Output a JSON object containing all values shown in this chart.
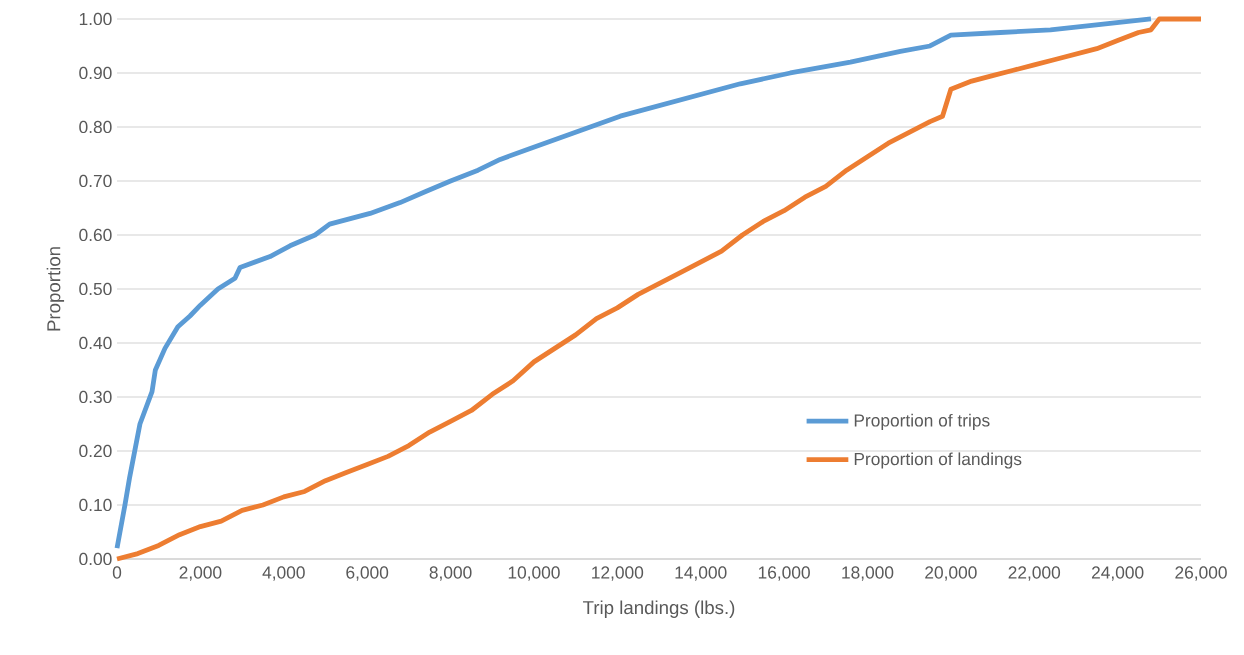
{
  "chart_data": {
    "type": "line",
    "xlabel": "Trip landings (lbs.)",
    "ylabel": "Proportion",
    "xlim": [
      0,
      26000
    ],
    "ylim": [
      0,
      1
    ],
    "xticks": [
      0,
      {
        "value": 2000,
        "label": "2,000"
      },
      {
        "value": 4000,
        "label": "4,000"
      },
      {
        "value": 6000,
        "label": "6,000"
      },
      {
        "value": 8000,
        "label": "8,000"
      },
      {
        "value": 10000,
        "label": "10,000"
      },
      {
        "value": 12000,
        "label": "12,000"
      },
      {
        "value": 14000,
        "label": "14,000"
      },
      {
        "value": 16000,
        "label": "16,000"
      },
      {
        "value": 18000,
        "label": "18,000"
      },
      {
        "value": 20000,
        "label": "20,000"
      },
      {
        "value": 22000,
        "label": "22,000"
      },
      {
        "value": 24000,
        "label": "24,000"
      },
      {
        "value": 26000,
        "label": "26,000"
      }
    ],
    "yticks": [
      {
        "value": 0,
        "label": "0.00"
      },
      {
        "value": 0.1,
        "label": "0.10"
      },
      {
        "value": 0.2,
        "label": "0.20"
      },
      {
        "value": 0.3,
        "label": "0.30"
      },
      {
        "value": 0.4,
        "label": "0.40"
      },
      {
        "value": 0.5,
        "label": "0.50"
      },
      {
        "value": 0.6,
        "label": "0.60"
      },
      {
        "value": 0.7,
        "label": "0.70"
      },
      {
        "value": 0.8,
        "label": "0.80"
      },
      {
        "value": 0.9,
        "label": "0.90"
      },
      {
        "value": 1,
        "label": "1.00"
      }
    ],
    "grid": "y",
    "legend": "bottom right",
    "marker": "none",
    "line_style": "solid",
    "series": [
      {
        "name": "Proportion of trips",
        "color": "#5b9bd5",
        "x": [
          0,
          190,
          300,
          550,
          840,
          920,
          1150,
          1460,
          1750,
          2000,
          2420,
          2830,
          2950,
          3670,
          4150,
          4750,
          5100,
          6070,
          6790,
          7390,
          8000,
          8660,
          9190,
          9910,
          10630,
          11350,
          12070,
          13030,
          13990,
          14950,
          16150,
          17590,
          18790,
          19500,
          20000,
          21190,
          22390,
          23600,
          24800
        ],
        "values": [
          0.02,
          0.1,
          0.15,
          0.25,
          0.31,
          0.35,
          0.39,
          0.43,
          0.45,
          0.47,
          0.5,
          0.52,
          0.54,
          0.56,
          0.58,
          0.6,
          0.62,
          0.64,
          0.66,
          0.68,
          0.7,
          0.72,
          0.74,
          0.76,
          0.78,
          0.8,
          0.82,
          0.84,
          0.86,
          0.88,
          0.9,
          0.92,
          0.94,
          0.95,
          0.97,
          0.975,
          0.98,
          0.99,
          1.0
        ]
      },
      {
        "name": "Proportion of landings",
        "color": "#ed7d31",
        "x": [
          0,
          500,
          1000,
          1500,
          2000,
          2500,
          3000,
          3500,
          4000,
          4500,
          5000,
          5500,
          6000,
          6500,
          7000,
          7500,
          8000,
          8500,
          9000,
          9500,
          10000,
          10500,
          11000,
          11500,
          12000,
          12500,
          13000,
          13500,
          14000,
          14500,
          15000,
          15500,
          16000,
          16500,
          17000,
          17500,
          18000,
          18500,
          19000,
          19500,
          19800,
          20000,
          20500,
          21000,
          21500,
          22000,
          22500,
          23000,
          23500,
          24000,
          24500,
          24800,
          25000,
          26000
        ],
        "values": [
          0,
          0.01,
          0.025,
          0.045,
          0.06,
          0.07,
          0.09,
          0.1,
          0.115,
          0.125,
          0.145,
          0.16,
          0.175,
          0.19,
          0.21,
          0.235,
          0.255,
          0.275,
          0.305,
          0.33,
          0.365,
          0.39,
          0.415,
          0.445,
          0.465,
          0.49,
          0.51,
          0.53,
          0.55,
          0.57,
          0.6,
          0.625,
          0.645,
          0.67,
          0.69,
          0.72,
          0.745,
          0.77,
          0.79,
          0.81,
          0.82,
          0.87,
          0.885,
          0.895,
          0.905,
          0.915,
          0.925,
          0.935,
          0.945,
          0.96,
          0.975,
          0.98,
          1.0,
          1.0
        ]
      }
    ]
  }
}
